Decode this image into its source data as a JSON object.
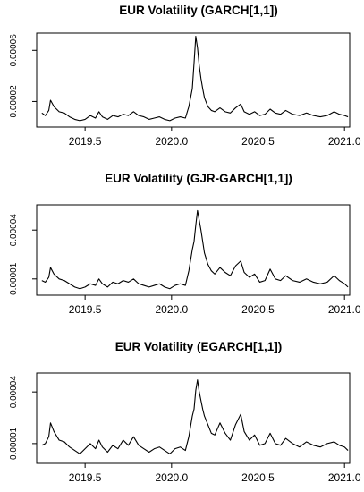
{
  "chart_data": [
    {
      "type": "line",
      "title": "EUR Volatility (GARCH[1,1])",
      "xlabel": "",
      "ylabel": "",
      "xlim": [
        2019.22,
        2021.03
      ],
      "ylim": [
        0.0,
        7.35e-05
      ],
      "xticks": [
        2019.5,
        2020.0,
        2020.5,
        2021.0
      ],
      "xtick_labels": [
        "2019.5",
        "2020.0",
        "2020.5",
        "2021.0"
      ],
      "yticks": [
        2e-05,
        6e-05
      ],
      "ytick_labels": [
        "0.00002",
        "0.00006"
      ],
      "grid": false,
      "series": [
        {
          "color": "#000000",
          "x": [
            2019.25,
            2019.27,
            2019.29,
            2019.3,
            2019.32,
            2019.35,
            2019.38,
            2019.41,
            2019.44,
            2019.47,
            2019.5,
            2019.53,
            2019.56,
            2019.58,
            2019.6,
            2019.63,
            2019.66,
            2019.69,
            2019.72,
            2019.75,
            2019.78,
            2019.81,
            2019.84,
            2019.87,
            2019.9,
            2019.93,
            2019.96,
            2019.99,
            2020.02,
            2020.05,
            2020.08,
            2020.1,
            2020.12,
            2020.13,
            2020.14,
            2020.15,
            2020.16,
            2020.17,
            2020.18,
            2020.19,
            2020.21,
            2020.23,
            2020.25,
            2020.28,
            2020.31,
            2020.34,
            2020.37,
            2020.4,
            2020.42,
            2020.45,
            2020.48,
            2020.51,
            2020.54,
            2020.57,
            2020.6,
            2020.63,
            2020.66,
            2020.7,
            2020.74,
            2020.78,
            2020.82,
            2020.86,
            2020.9,
            2020.94,
            2020.97,
            2021.0,
            2021.02
          ],
          "y": [
            1.1e-05,
            9e-06,
            1.3e-05,
            2.1e-05,
            1.6e-05,
            1.2e-05,
            1.1e-05,
            8e-06,
            6e-06,
            5e-06,
            6e-06,
            9e-06,
            7e-06,
            1.2e-05,
            8e-06,
            6e-06,
            9e-06,
            8e-06,
            1e-05,
            9e-06,
            1.2e-05,
            9e-06,
            8e-06,
            6e-06,
            7e-06,
            8e-06,
            6e-06,
            5e-06,
            7e-06,
            8e-06,
            7e-06,
            1.6e-05,
            3e-05,
            5e-05,
            7.1e-05,
            6.2e-05,
            4.8e-05,
            3.8e-05,
            3e-05,
            2.3e-05,
            1.6e-05,
            1.3e-05,
            1.2e-05,
            1.5e-05,
            1.2e-05,
            1.1e-05,
            1.5e-05,
            1.8e-05,
            1.2e-05,
            1e-05,
            1.2e-05,
            9e-06,
            1e-05,
            1.4e-05,
            1.1e-05,
            1e-05,
            1.3e-05,
            1e-05,
            9e-06,
            1.1e-05,
            9e-06,
            8e-06,
            9e-06,
            1.2e-05,
            1e-05,
            9e-06,
            8e-06
          ]
        }
      ]
    },
    {
      "type": "line",
      "title": "EUR Volatility (GJR-GARCH[1,1])",
      "xlabel": "",
      "ylabel": "",
      "xlim": [
        2019.22,
        2021.03
      ],
      "ylim": [
        0.0,
        5.55e-05
      ],
      "xticks": [
        2019.5,
        2020.0,
        2020.5,
        2021.0
      ],
      "xtick_labels": [
        "2019.5",
        "2020.0",
        "2020.5",
        "2021.0"
      ],
      "yticks": [
        1e-05,
        4e-05
      ],
      "ytick_labels": [
        "0.00001",
        "0.00004"
      ],
      "grid": false,
      "series": [
        {
          "color": "#000000",
          "x": [
            2019.25,
            2019.27,
            2019.29,
            2019.3,
            2019.32,
            2019.35,
            2019.38,
            2019.41,
            2019.44,
            2019.47,
            2019.5,
            2019.53,
            2019.56,
            2019.58,
            2019.6,
            2019.63,
            2019.66,
            2019.69,
            2019.72,
            2019.75,
            2019.78,
            2019.81,
            2019.84,
            2019.87,
            2019.9,
            2019.93,
            2019.96,
            2019.99,
            2020.02,
            2020.05,
            2020.08,
            2020.1,
            2020.12,
            2020.13,
            2020.14,
            2020.15,
            2020.16,
            2020.17,
            2020.18,
            2020.19,
            2020.21,
            2020.23,
            2020.25,
            2020.28,
            2020.31,
            2020.34,
            2020.37,
            2020.4,
            2020.42,
            2020.45,
            2020.48,
            2020.51,
            2020.54,
            2020.57,
            2020.6,
            2020.63,
            2020.66,
            2020.7,
            2020.74,
            2020.78,
            2020.82,
            2020.86,
            2020.9,
            2020.94,
            2020.97,
            2021.0,
            2021.02
          ],
          "y": [
            9e-06,
            8e-06,
            1.1e-05,
            1.7e-05,
            1.3e-05,
            1e-05,
            9e-06,
            7e-06,
            5e-06,
            4e-06,
            5e-06,
            7e-06,
            6e-06,
            1e-05,
            7e-06,
            5e-06,
            8e-06,
            7e-06,
            9e-06,
            8e-06,
            1e-05,
            7e-06,
            6e-06,
            5e-06,
            6e-06,
            7e-06,
            5e-06,
            4e-06,
            6e-06,
            7e-06,
            6e-06,
            1.5e-05,
            2.8e-05,
            3.3e-05,
            4.3e-05,
            5.2e-05,
            4.6e-05,
            4e-05,
            3.3e-05,
            2.6e-05,
            1.9e-05,
            1.5e-05,
            1.3e-05,
            1.7e-05,
            1.4e-05,
            1.2e-05,
            1.8e-05,
            2.1e-05,
            1.4e-05,
            1.1e-05,
            1.3e-05,
            8e-06,
            9e-06,
            1.6e-05,
            1e-05,
            9e-06,
            1.2e-05,
            9e-06,
            8e-06,
            1e-05,
            8e-06,
            7e-06,
            8e-06,
            1.2e-05,
            9e-06,
            7e-06,
            5e-06
          ]
        }
      ]
    },
    {
      "type": "line",
      "title": "EUR Volatility (EGARCH[1,1])",
      "xlabel": "",
      "ylabel": "",
      "xlim": [
        2019.22,
        2021.03
      ],
      "ylim": [
        -1.5e-06,
        5.1e-05
      ],
      "xticks": [
        2019.5,
        2020.0,
        2020.5,
        2021.0
      ],
      "xtick_labels": [
        "2019.5",
        "2020.0",
        "2020.5",
        "2021.0"
      ],
      "yticks": [
        1e-05,
        4e-05
      ],
      "ytick_labels": [
        "0.00001",
        "0.00004"
      ],
      "grid": false,
      "series": [
        {
          "color": "#000000",
          "x": [
            2019.25,
            2019.27,
            2019.29,
            2019.3,
            2019.32,
            2019.35,
            2019.38,
            2019.41,
            2019.44,
            2019.47,
            2019.5,
            2019.53,
            2019.56,
            2019.58,
            2019.6,
            2019.63,
            2019.66,
            2019.69,
            2019.72,
            2019.75,
            2019.78,
            2019.81,
            2019.84,
            2019.87,
            2019.9,
            2019.93,
            2019.96,
            2019.99,
            2020.02,
            2020.05,
            2020.08,
            2020.1,
            2020.12,
            2020.13,
            2020.14,
            2020.15,
            2020.16,
            2020.17,
            2020.18,
            2020.19,
            2020.21,
            2020.23,
            2020.25,
            2020.28,
            2020.31,
            2020.34,
            2020.37,
            2020.4,
            2020.42,
            2020.45,
            2020.48,
            2020.51,
            2020.54,
            2020.57,
            2020.6,
            2020.63,
            2020.66,
            2020.7,
            2020.74,
            2020.78,
            2020.82,
            2020.86,
            2020.9,
            2020.94,
            2020.97,
            2021.0,
            2021.02
          ],
          "y": [
            9e-06,
            1e-05,
            1.4e-05,
            2.2e-05,
            1.7e-05,
            1.2e-05,
            1.1e-05,
            8e-06,
            6e-06,
            4e-06,
            7e-06,
            1e-05,
            7e-06,
            1.2e-05,
            8e-06,
            5e-06,
            9e-06,
            7e-06,
            1.2e-05,
            9e-06,
            1.4e-05,
            9e-06,
            7e-06,
            5e-06,
            7e-06,
            8e-06,
            6e-06,
            4e-06,
            7e-06,
            8e-06,
            6e-06,
            1.4e-05,
            2.6e-05,
            3e-05,
            4.1e-05,
            4.7e-05,
            4e-05,
            3.5e-05,
            3e-05,
            2.6e-05,
            2.1e-05,
            1.6e-05,
            1.5e-05,
            2.2e-05,
            1.6e-05,
            1.2e-05,
            2.1e-05,
            2.7e-05,
            1.7e-05,
            1.2e-05,
            1.5e-05,
            9e-06,
            1e-05,
            1.6e-05,
            1e-05,
            9e-06,
            1.3e-05,
            1e-05,
            8e-06,
            1.1e-05,
            9e-06,
            8e-06,
            1e-05,
            1.1e-05,
            9e-06,
            8e-06,
            6e-06
          ]
        }
      ]
    }
  ]
}
